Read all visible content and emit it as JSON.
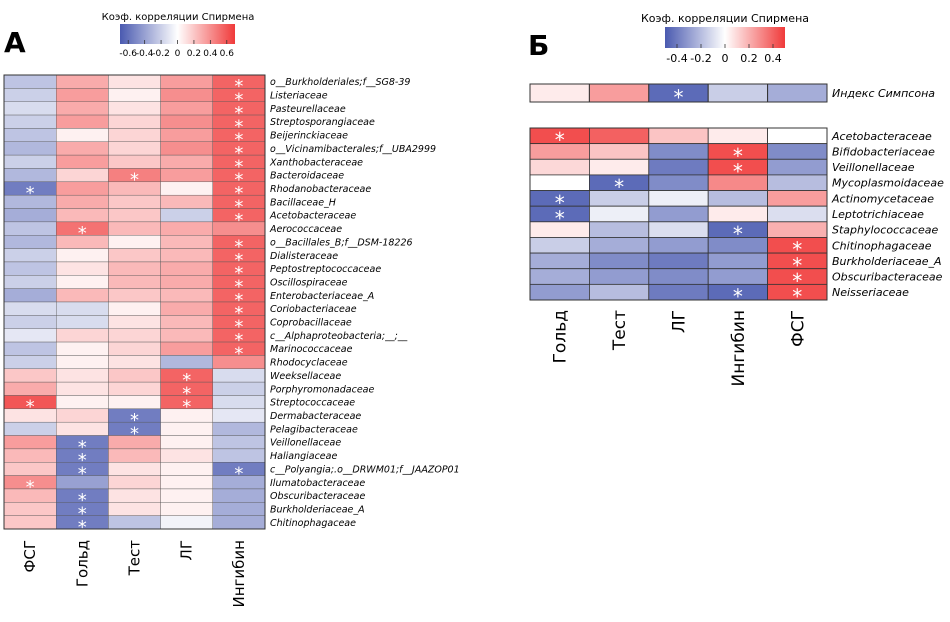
{
  "chart_data": [
    {
      "type": "heatmap",
      "panel_label": "А",
      "legend_title": "Коэф. корреляции Спирмена",
      "legend_ticks": [
        "-0.6",
        "-0.4",
        "-0.2",
        "0",
        "0.2",
        "0.4",
        "0.6"
      ],
      "legend_tick_values": [
        -0.6,
        -0.4,
        -0.2,
        0,
        0.2,
        0.4,
        0.6
      ],
      "range": [
        -0.7,
        0.7
      ],
      "columns": [
        "ФСГ",
        "Гольд",
        "Тест",
        "ЛГ",
        "Ингибин"
      ],
      "rows": [
        "o__Burkholderiales;f__SG8-39",
        "Listeriaceae",
        "Pasteurellaceae",
        "Streptosporangiaceae",
        "Beijerinckiaceae",
        "o__Vicinamibacterales;f__UBA2999",
        "Xanthobacteraceae",
        "Bacteroidaceae",
        "Rhodanobacteraceae",
        "Bacillaceae_H",
        "Acetobacteraceae",
        "Aerococcaceae",
        "o__Bacillales_B;f__DSM-18226",
        "Dialisteraceae",
        "Peptostreptococcaceae",
        "Oscillospiraceae",
        "Enterobacteriaceae_A",
        "Coriobacteriaceae",
        "Coprobacillaceae",
        "c__Alphaproteobacteria;__;__",
        "Marinococcaceae",
        "Rhodocyclaceae",
        "Weeksellaceae",
        "Porphyromonadaceae",
        "Streptococcaceae",
        "Dermabacteraceae",
        "Pelagibacteraceae",
        "Veillonellaceae",
        "Haliangiaceae",
        "c__Polyangia;.o__DRWM01;f__JAAZOP01",
        "Ilumatobacteraceae",
        "Obscuribacteraceae",
        "Burkholderiaceae_A",
        "Chitinophagaceae"
      ],
      "values": [
        [
          -0.25,
          0.3,
          0.1,
          0.35,
          0.55
        ],
        [
          -0.2,
          0.35,
          0.05,
          0.4,
          0.55
        ],
        [
          -0.15,
          0.3,
          0.1,
          0.35,
          0.55
        ],
        [
          -0.2,
          0.35,
          0.15,
          0.4,
          0.55
        ],
        [
          -0.25,
          0.05,
          0.15,
          0.35,
          0.55
        ],
        [
          -0.3,
          0.3,
          0.15,
          0.4,
          0.55
        ],
        [
          -0.2,
          0.35,
          0.2,
          0.3,
          0.55
        ],
        [
          -0.3,
          0.15,
          0.45,
          0.35,
          0.55
        ],
        [
          -0.55,
          0.35,
          0.25,
          0.05,
          0.55
        ],
        [
          -0.3,
          0.3,
          0.2,
          0.25,
          0.55
        ],
        [
          -0.35,
          0.25,
          0.2,
          -0.2,
          0.55
        ],
        [
          -0.25,
          0.5,
          0.25,
          0.3,
          0.4
        ],
        [
          -0.3,
          0.25,
          0.05,
          0.25,
          0.55
        ],
        [
          -0.2,
          0.05,
          0.2,
          0.25,
          0.55
        ],
        [
          -0.25,
          0.1,
          0.25,
          0.3,
          0.55
        ],
        [
          -0.2,
          0.05,
          0.25,
          0.3,
          0.55
        ],
        [
          -0.35,
          0.25,
          0.2,
          0.25,
          0.55
        ],
        [
          -0.15,
          -0.15,
          0.05,
          0.3,
          0.55
        ],
        [
          -0.2,
          -0.15,
          0.1,
          0.25,
          0.55
        ],
        [
          -0.1,
          0.15,
          0.15,
          0.25,
          0.55
        ],
        [
          -0.25,
          0.05,
          0.15,
          0.35,
          0.55
        ],
        [
          -0.2,
          0.05,
          0.1,
          -0.3,
          0.4
        ],
        [
          0.2,
          0.1,
          0.2,
          0.55,
          -0.15
        ],
        [
          0.3,
          0.1,
          0.15,
          0.55,
          -0.2
        ],
        [
          0.6,
          0.05,
          0.05,
          0.55,
          -0.15
        ],
        [
          0.1,
          0.15,
          -0.55,
          0.05,
          -0.1
        ],
        [
          -0.2,
          0.1,
          -0.55,
          0.05,
          -0.3
        ],
        [
          0.35,
          -0.55,
          0.3,
          0.05,
          -0.25
        ],
        [
          0.25,
          -0.55,
          0.25,
          0.1,
          -0.25
        ],
        [
          0.2,
          -0.55,
          0.1,
          0.05,
          -0.55
        ],
        [
          0.4,
          -0.4,
          0.15,
          0.05,
          -0.35
        ],
        [
          0.25,
          -0.55,
          0.1,
          0.05,
          -0.35
        ],
        [
          0.2,
          -0.55,
          0.1,
          0.05,
          -0.35
        ],
        [
          0.2,
          -0.55,
          -0.25,
          -0.05,
          -0.35
        ]
      ],
      "significant": [
        [
          0,
          4
        ],
        [
          1,
          4
        ],
        [
          2,
          4
        ],
        [
          3,
          4
        ],
        [
          4,
          4
        ],
        [
          5,
          4
        ],
        [
          6,
          4
        ],
        [
          7,
          2
        ],
        [
          7,
          4
        ],
        [
          8,
          0
        ],
        [
          8,
          4
        ],
        [
          9,
          4
        ],
        [
          10,
          4
        ],
        [
          11,
          1
        ],
        [
          12,
          4
        ],
        [
          13,
          4
        ],
        [
          14,
          4
        ],
        [
          15,
          4
        ],
        [
          16,
          4
        ],
        [
          17,
          4
        ],
        [
          18,
          4
        ],
        [
          19,
          4
        ],
        [
          20,
          4
        ],
        [
          22,
          3
        ],
        [
          23,
          3
        ],
        [
          24,
          0
        ],
        [
          24,
          3
        ],
        [
          25,
          2
        ],
        [
          26,
          2
        ],
        [
          27,
          1
        ],
        [
          28,
          1
        ],
        [
          29,
          1
        ],
        [
          29,
          4
        ],
        [
          30,
          0
        ],
        [
          31,
          1
        ],
        [
          32,
          1
        ],
        [
          33,
          1
        ]
      ],
      "significance_mark": "*"
    },
    {
      "type": "heatmap",
      "panel_label": "Б",
      "legend_title": "Коэф. корреляции Спирмена",
      "legend_ticks": [
        "-0.4",
        "-0.2",
        "0",
        "0.2",
        "0.4"
      ],
      "legend_tick_values": [
        -0.4,
        -0.2,
        0,
        0.2,
        0.4
      ],
      "range": [
        -0.5,
        0.5
      ],
      "columns": [
        "Гольд",
        "Тест",
        "ЛГ",
        "Ингибин",
        "ФСГ"
      ],
      "index_row": {
        "label": "Индекс Симпсона",
        "values": [
          0.05,
          0.25,
          -0.45,
          -0.15,
          -0.25
        ],
        "significant": [
          2
        ]
      },
      "rows": [
        "Acetobacteraceae",
        "Bifidobacteriaceae",
        "Veillonellaceae",
        "Mycoplasmoidaceae",
        "Actinomycetaceae",
        "Leptotrichiaceae",
        "Staphylococcaceae",
        "Chitinophagaceae",
        "Burkholderiaceae_A",
        "Obscuribacteraceae",
        "Neisseriaceae"
      ],
      "values": [
        [
          0.45,
          0.4,
          0.15,
          0.05,
          0.0
        ],
        [
          0.25,
          0.15,
          -0.35,
          0.45,
          -0.35
        ],
        [
          0.1,
          0.05,
          -0.4,
          0.45,
          -0.3
        ],
        [
          0.0,
          -0.45,
          -0.35,
          0.3,
          -0.2
        ],
        [
          -0.45,
          -0.15,
          -0.05,
          -0.2,
          0.25
        ],
        [
          -0.45,
          -0.05,
          -0.3,
          0.05,
          -0.1
        ],
        [
          0.05,
          -0.2,
          -0.1,
          -0.45,
          0.2
        ],
        [
          -0.15,
          -0.25,
          -0.3,
          -0.35,
          0.45
        ],
        [
          -0.25,
          -0.35,
          -0.4,
          -0.3,
          0.45
        ],
        [
          -0.25,
          -0.3,
          -0.35,
          -0.3,
          0.45
        ],
        [
          -0.3,
          -0.2,
          -0.4,
          -0.45,
          0.45
        ]
      ],
      "significant": [
        [
          0,
          0
        ],
        [
          1,
          3
        ],
        [
          2,
          3
        ],
        [
          3,
          1
        ],
        [
          4,
          0
        ],
        [
          5,
          0
        ],
        [
          6,
          3
        ],
        [
          7,
          4
        ],
        [
          8,
          4
        ],
        [
          9,
          4
        ],
        [
          10,
          3
        ],
        [
          10,
          4
        ]
      ],
      "significance_mark": "*"
    }
  ]
}
